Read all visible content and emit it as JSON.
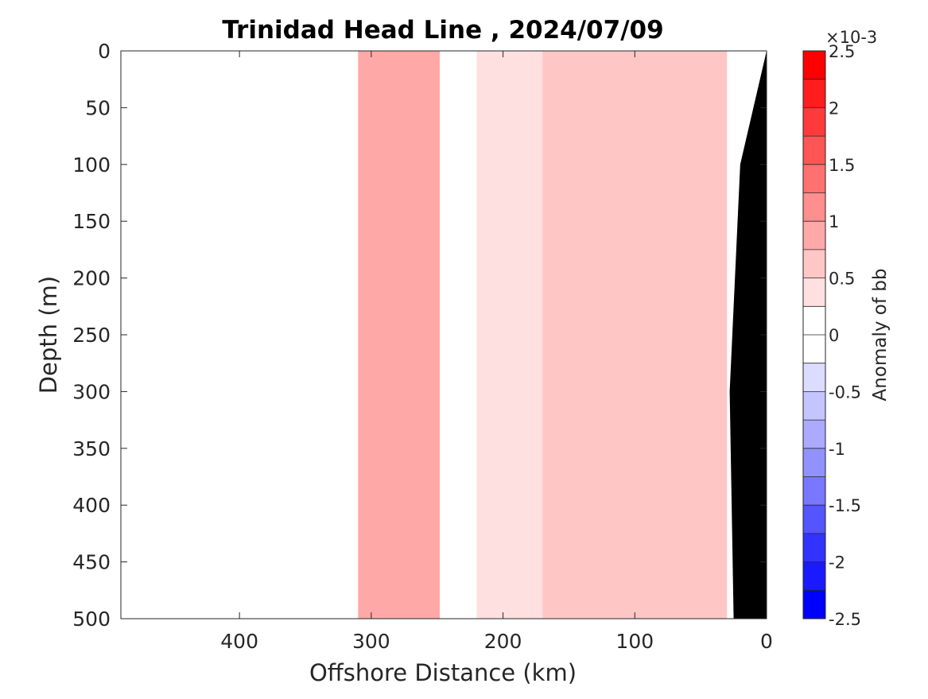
{
  "chart_data": {
    "type": "heatmap",
    "title": "Trinidad Head Line , 2024/07/09",
    "xlabel": "Offshore Distance (km)",
    "ylabel": "Depth (m)",
    "xlim": [
      490,
      0
    ],
    "ylim": [
      0,
      500
    ],
    "x_reversed": true,
    "y_reversed": true,
    "x_ticks": [
      400,
      300,
      200,
      100,
      0
    ],
    "x_tick_labels": [
      "400",
      "300",
      "200",
      "100",
      "0"
    ],
    "y_ticks": [
      0,
      50,
      100,
      150,
      200,
      250,
      300,
      350,
      400,
      450,
      500
    ],
    "y_tick_labels": [
      "0",
      "50",
      "100",
      "150",
      "200",
      "250",
      "300",
      "350",
      "400",
      "450",
      "500"
    ],
    "colorbar": {
      "label": "Anomaly of bb",
      "exponent": "×10-3",
      "range": [
        -2.5,
        2.5
      ],
      "levels": [
        -2.5,
        -2.25,
        -2.0,
        -1.75,
        -1.5,
        -1.25,
        -1.0,
        -0.75,
        -0.5,
        -0.25,
        0,
        0.25,
        0.5,
        0.75,
        1.0,
        1.25,
        1.5,
        1.75,
        2.0,
        2.25,
        2.5
      ],
      "tick_values": [
        2.5,
        2,
        1.5,
        1,
        0.5,
        0,
        -0.5,
        -1,
        -1.5,
        -2,
        -2.5
      ],
      "tick_labels": [
        "2.5",
        "2",
        "1.5",
        "1",
        "0.5",
        "0",
        "-0.5",
        "-1",
        "-1.5",
        "-2",
        "-2.5"
      ],
      "colors": [
        "#0000ff",
        "#1a1aff",
        "#3333ff",
        "#5555ff",
        "#7777ff",
        "#9191ff",
        "#aaaaff",
        "#c4c4ff",
        "#dcdcff",
        "#ffffff",
        "#ffffff",
        "#ffe0e0",
        "#ffc6c6",
        "#ffa8a8",
        "#ff8e8e",
        "#ff7171",
        "#ff5555",
        "#ff3a3a",
        "#ff1d1d",
        "#ff0000"
      ]
    },
    "bands": [
      {
        "x_from": 310,
        "x_to": 248,
        "value": 0.8
      },
      {
        "x_from": 248,
        "x_to": 220,
        "value": 0.0
      },
      {
        "x_from": 220,
        "x_to": 170,
        "value": 0.4
      },
      {
        "x_from": 170,
        "x_to": 30,
        "value": 0.6
      }
    ],
    "no_data_x_range": [
      490,
      310
    ],
    "bathymetry_mask": [
      [
        0,
        0
      ],
      [
        20,
        100
      ],
      [
        28,
        300
      ],
      [
        25,
        500
      ]
    ],
    "annotations": []
  }
}
